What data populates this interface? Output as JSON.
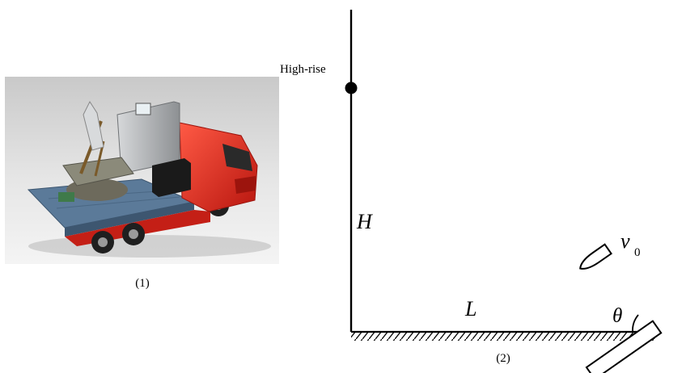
{
  "figure1": {
    "caption": "(1)",
    "image_description_icon": "rocket-launcher-truck-icon",
    "colors": {
      "truck_cab": "#e02a1f",
      "bed": "#5b7a99",
      "cabinet": "#b9bcbf"
    }
  },
  "figure2": {
    "caption": "(2)",
    "building_label": "High-rise",
    "height_label": "H",
    "distance_label": "L",
    "angle_label": "θ",
    "velocity_symbol": "v",
    "velocity_subscript": "0"
  }
}
